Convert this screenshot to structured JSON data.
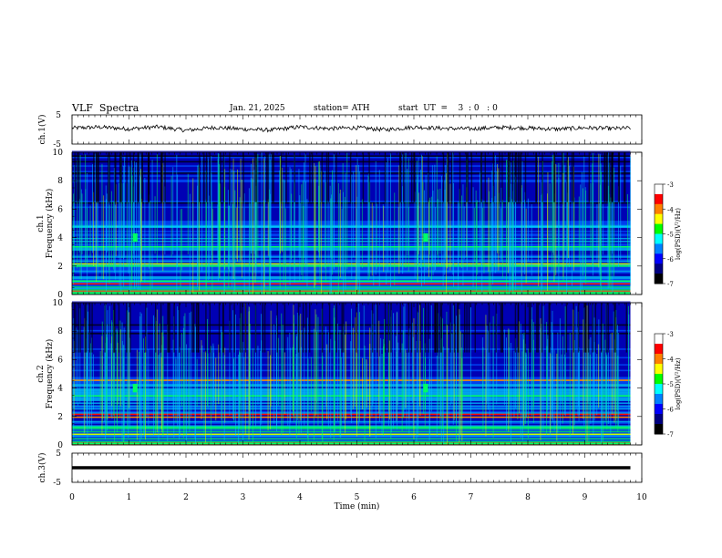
{
  "header": {
    "title": "VLF  Spectra",
    "date": "Jan. 21, 2025",
    "station": "station= ATH",
    "start_ut": "start  UT  =    3  : 0   : 0"
  },
  "chart_data": [
    {
      "id": "ch1-waveform",
      "type": "line",
      "title": "",
      "ylabel": "ch.1(V)",
      "ylim": [
        -5,
        5
      ],
      "yticks": [
        "5",
        "-5"
      ],
      "xlim": [
        0,
        10
      ],
      "x": [
        0.0,
        0.5,
        1.0,
        1.5,
        2.0,
        2.5,
        3.0,
        3.5,
        4.0,
        4.5,
        5.0,
        5.5,
        6.0,
        6.5,
        7.0,
        7.5,
        8.0,
        8.5,
        9.0,
        9.5,
        9.8
      ],
      "values": [
        0.5,
        0.8,
        0.2,
        0.9,
        -0.3,
        0.7,
        0.1,
        -0.2,
        0.9,
        0.3,
        0.6,
        -0.1,
        0.8,
        0.4,
        0.2,
        0.7,
        0.5,
        0.1,
        0.6,
        0.3,
        0.5
      ],
      "color": "#000000"
    },
    {
      "id": "ch1-spectrogram",
      "type": "heatmap",
      "ylabel": "ch.1\nFrequency  (kHz)",
      "ylim": [
        0,
        10
      ],
      "yticks": [
        "0",
        "2",
        "4",
        "6",
        "8",
        "10"
      ],
      "xlim": [
        0,
        10
      ],
      "data_end_min": 9.8,
      "colorbar": {
        "label": "log(PSD)(V²/Hz)",
        "ticks": [
          "-3",
          "-4",
          "-5",
          "-6",
          "-7"
        ],
        "range": [
          -7,
          -3
        ]
      }
    },
    {
      "id": "ch2-spectrogram",
      "type": "heatmap",
      "ylabel": "ch.2\nFrequency  (kHz)",
      "ylim": [
        0,
        10
      ],
      "yticks": [
        "0",
        "2",
        "4",
        "6",
        "8",
        "10"
      ],
      "xlim": [
        0,
        10
      ],
      "data_end_min": 9.8,
      "colorbar": {
        "label": "log(PSD)(V²/Hz)",
        "ticks": [
          "-3",
          "-4",
          "-5",
          "-6",
          "-7"
        ],
        "range": [
          -7,
          -3
        ]
      }
    },
    {
      "id": "ch3-waveform",
      "type": "line",
      "ylabel": "ch.3(V)",
      "ylim": [
        -5,
        5
      ],
      "yticks": [
        "5",
        "-5"
      ],
      "xlim": [
        0,
        10
      ],
      "xlabel": "Time  (min)",
      "xticks": [
        "0",
        "1",
        "2",
        "3",
        "4",
        "5",
        "6",
        "7",
        "8",
        "9",
        "10"
      ],
      "x": [
        0,
        9.8
      ],
      "values": [
        0,
        0
      ],
      "color": "#000000"
    }
  ],
  "colors": {
    "colormap": [
      "#000000",
      "#0000b4",
      "#0050ff",
      "#00c8ff",
      "#00ff64",
      "#c8ff00",
      "#ff8000",
      "#ff0000",
      "#ffffff"
    ],
    "axis": "#000000"
  }
}
